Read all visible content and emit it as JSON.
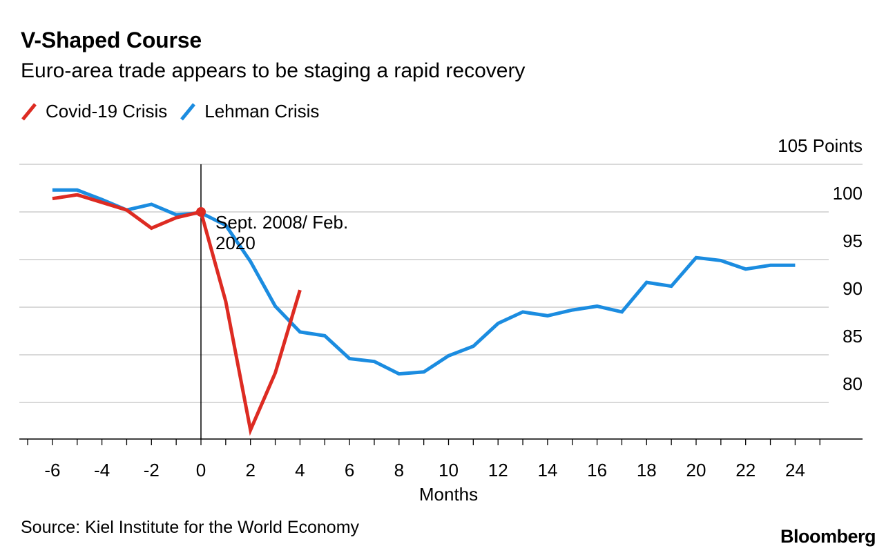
{
  "title": "V-Shaped Course",
  "subtitle": "Euro-area trade appears to be staging a rapid recovery",
  "source": "Source: Kiel Institute for the World Economy",
  "brand": "Bloomberg",
  "chart_data": {
    "type": "line",
    "title": "V-Shaped Course",
    "subtitle": "Euro-area trade appears to be staging a rapid recovery",
    "xlabel": "Months",
    "ylabel": "",
    "y_unit_label": "105 Points",
    "xlim": [
      -7,
      25
    ],
    "ylim": [
      76,
      105
    ],
    "x_ticks": [
      -6,
      -4,
      -2,
      0,
      2,
      4,
      6,
      8,
      10,
      12,
      14,
      16,
      18,
      20,
      22,
      24
    ],
    "x_tick_labels": [
      "-6",
      "-4",
      "-2",
      "0",
      "2",
      "4",
      "6",
      "8",
      "10",
      "12",
      "14",
      "16",
      "18",
      "20",
      "22",
      "24"
    ],
    "y_ticks": [
      80,
      85,
      90,
      95,
      100
    ],
    "y_tick_labels": [
      "80",
      "85",
      "90",
      "95",
      "100"
    ],
    "grid": true,
    "legend_position": "top-left",
    "series": [
      {
        "name": "Covid-19 Crisis",
        "color": "#dd2b22",
        "x": [
          -6,
          -5,
          -4,
          -3,
          -2,
          -1,
          0,
          1,
          2,
          3,
          4
        ],
        "y": [
          101.4,
          101.8,
          101.0,
          100.2,
          98.3,
          99.4,
          100.0,
          90.6,
          77.1,
          83.1,
          91.8
        ]
      },
      {
        "name": "Lehman Crisis",
        "color": "#1b8ce0",
        "x": [
          -6,
          -5,
          -4,
          -3,
          -2,
          -1,
          0,
          1,
          2,
          3,
          4,
          5,
          6,
          7,
          8,
          9,
          10,
          11,
          12,
          13,
          14,
          15,
          16,
          17,
          18,
          19,
          20,
          21,
          22,
          23,
          24
        ],
        "y": [
          102.3,
          102.3,
          101.3,
          100.2,
          100.8,
          99.7,
          99.9,
          98.6,
          94.8,
          90.1,
          87.4,
          87.0,
          84.6,
          84.3,
          83.0,
          83.2,
          84.9,
          85.9,
          88.3,
          89.5,
          89.1,
          89.7,
          90.1,
          89.5,
          92.6,
          92.2,
          95.2,
          94.9,
          94.0,
          94.4,
          94.4
        ]
      }
    ],
    "annotations": [
      {
        "text": "Sept. 2008/ Feb. 2020",
        "line1": "Sept. 2008/ Feb.",
        "line2": "2020",
        "x": 0,
        "y": 100.0
      }
    ]
  }
}
